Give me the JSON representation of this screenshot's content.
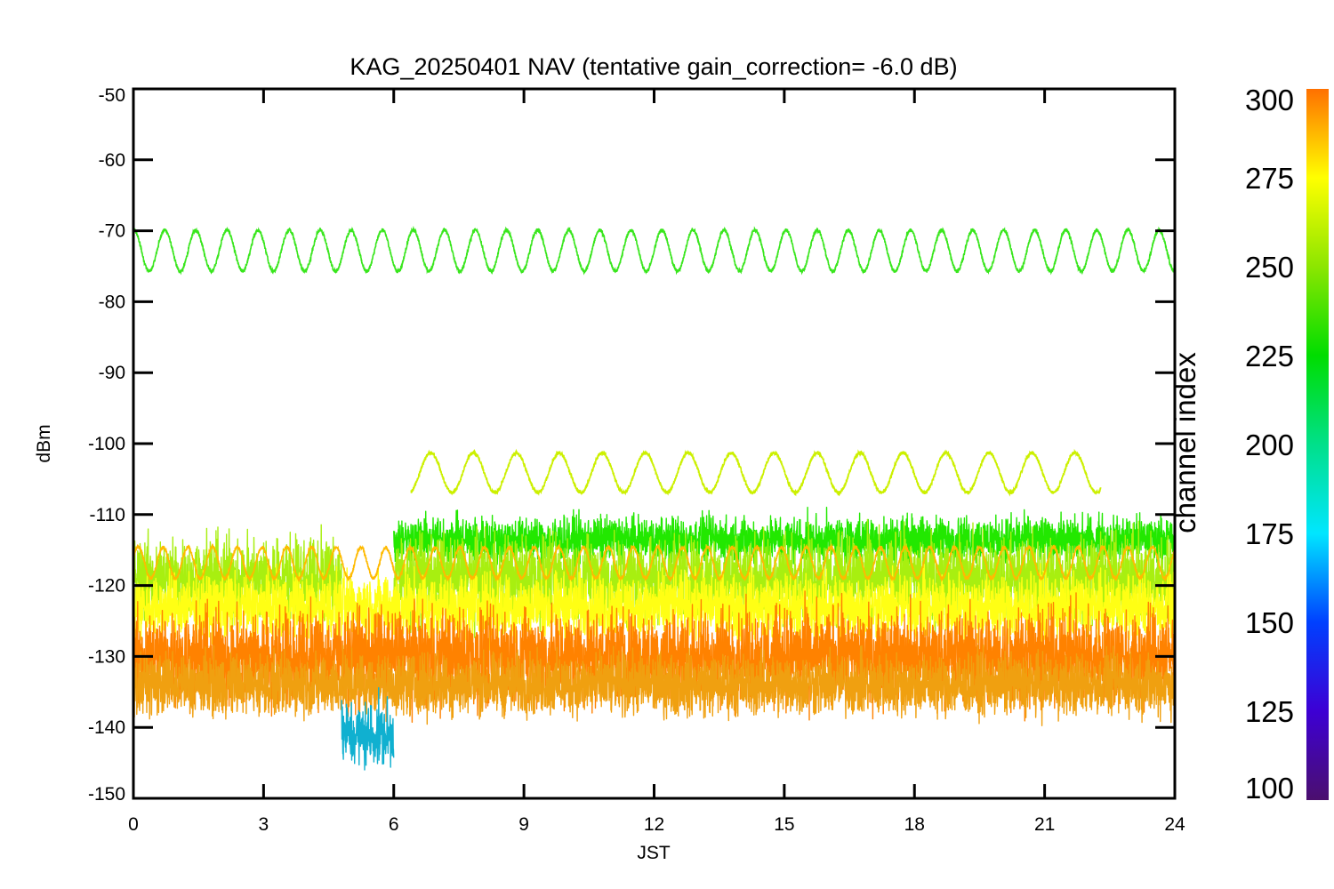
{
  "chart_data": {
    "type": "line",
    "title": "KAG_20250401 NAV (tentative gain_correction= -6.0 dB)",
    "xlabel": "JST",
    "ylabel": "dBm",
    "xlim": [
      0,
      24
    ],
    "ylim": [
      -150,
      -50
    ],
    "xticks": [
      0,
      3,
      6,
      9,
      12,
      15,
      18,
      21,
      24
    ],
    "yticks": [
      -50,
      -60,
      -70,
      -80,
      -90,
      -100,
      -110,
      -120,
      -130,
      -140,
      -150
    ],
    "grid": false,
    "colorbar": {
      "label": "channel index",
      "range": [
        100,
        300
      ],
      "ticks": [
        300,
        275,
        250,
        225,
        200,
        175,
        150,
        125,
        100
      ],
      "stops": [
        {
          "value": 100,
          "color": "#4b0f6e"
        },
        {
          "value": 125,
          "color": "#3d00d4"
        },
        {
          "value": 150,
          "color": "#0040ff"
        },
        {
          "value": 175,
          "color": "#00e6ff"
        },
        {
          "value": 200,
          "color": "#00e08a"
        },
        {
          "value": 225,
          "color": "#00dd00"
        },
        {
          "value": 250,
          "color": "#8ce600"
        },
        {
          "value": 275,
          "color": "#ffff00"
        },
        {
          "value": 300,
          "color": "#ff7000"
        }
      ]
    },
    "series": [
      {
        "type": "sinusoid",
        "channel": 237,
        "color": "#39e61d",
        "x_range": [
          0,
          24
        ],
        "center": -72.8,
        "amplitude": 2.9,
        "period_hours": 0.716,
        "phase": 1.5
      },
      {
        "type": "sinusoid",
        "channel": 262,
        "color": "#ccf000",
        "x_range": [
          6.4,
          22.3
        ],
        "center": -104.1,
        "amplitude": 2.8,
        "period_hours": 0.99,
        "phase": 2.1
      },
      {
        "type": "noise_band",
        "channel": 235,
        "color": "#22e800",
        "segments": [
          {
            "x_range": [
              6.0,
              24
            ],
            "center": -113.5,
            "spread": 2.4
          }
        ]
      },
      {
        "type": "noise_band",
        "channel": 255,
        "color": "#a8ef10",
        "segments": [
          {
            "x_range": [
              0,
              4.8
            ],
            "center": -119,
            "spread": 4.5
          },
          {
            "x_range": [
              6.0,
              24
            ],
            "center": -119,
            "spread": 4.5
          }
        ]
      },
      {
        "type": "noise_band",
        "channel": 272,
        "color": "#ffff14",
        "segments": [
          {
            "x_range": [
              0,
              24
            ],
            "center": -123,
            "spread": 3.5
          }
        ]
      },
      {
        "type": "sinusoid",
        "channel": 285,
        "color": "#ffba00",
        "x_range": [
          0,
          24
        ],
        "center": -116.8,
        "amplitude": 2.2,
        "period_hours": 0.57,
        "phase": 0.3
      },
      {
        "type": "noise_band",
        "channel": 297,
        "color": "#ff8200",
        "segments": [
          {
            "x_range": [
              0,
              24
            ],
            "center": -130,
            "spread": 5.0
          }
        ]
      },
      {
        "type": "noise_band",
        "channel": 290,
        "color": "#f0a010",
        "segments": [
          {
            "x_range": [
              0,
              24
            ],
            "center": -134,
            "spread": 3.2
          }
        ]
      },
      {
        "type": "noise_band",
        "channel": 180,
        "color": "#10b0d0",
        "segments": [
          {
            "x_range": [
              4.8,
              6.0
            ],
            "center": -141,
            "spread": 3.5
          }
        ]
      }
    ]
  }
}
